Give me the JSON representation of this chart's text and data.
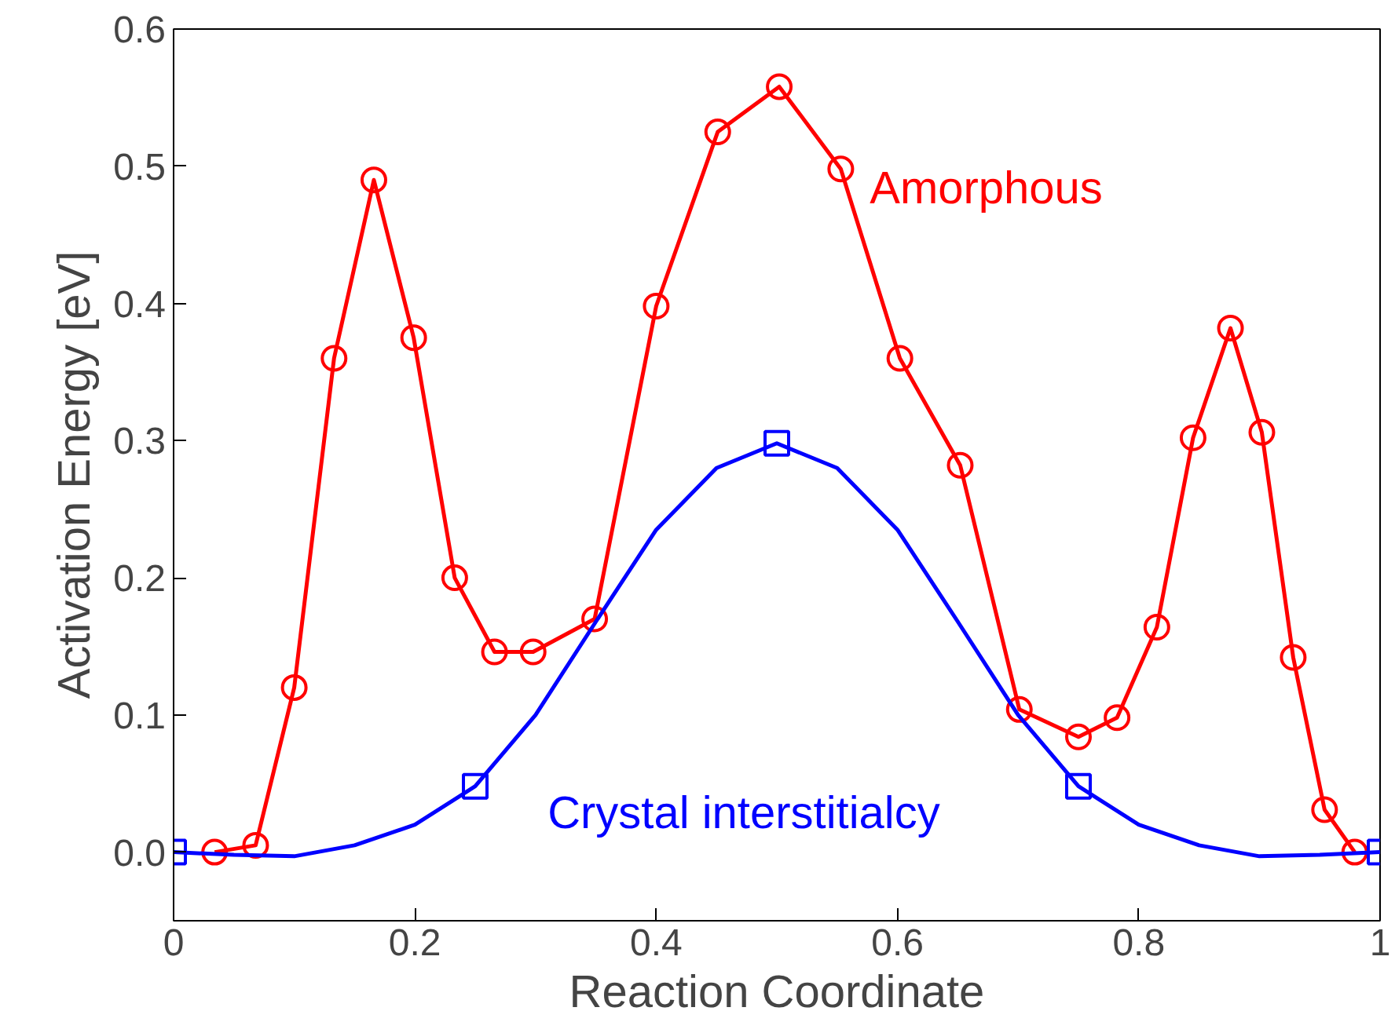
{
  "chart_data": {
    "type": "line",
    "xlabel": "Reaction Coordinate",
    "ylabel": "Activation Energy [eV]",
    "xlim": [
      0,
      1
    ],
    "ylim": [
      -0.05,
      0.6
    ],
    "xticks": [
      0,
      0.2,
      0.4,
      0.6,
      0.8,
      1
    ],
    "yticks": [
      {
        "value": 0,
        "label": "0.0"
      },
      0.1,
      0.2,
      0.3,
      0.4,
      0.5,
      0.6
    ],
    "grid": false,
    "line_style": "solid",
    "series": [
      {
        "name": "Amorphous",
        "color": "#ff0000",
        "marker": "circle",
        "x": [
          0.034,
          0.068,
          0.1,
          0.133,
          0.166,
          0.199,
          0.233,
          0.266,
          0.298,
          0.349,
          0.4,
          0.451,
          0.502,
          0.553,
          0.602,
          0.652,
          0.701,
          0.75,
          0.782,
          0.815,
          0.845,
          0.876,
          0.902,
          0.928,
          0.954,
          0.979
        ],
        "values": [
          0,
          0.005,
          0.12,
          0.36,
          0.49,
          0.375,
          0.2,
          0.146,
          0.146,
          0.17,
          0.398,
          0.525,
          0.558,
          0.498,
          0.36,
          0.282,
          0.104,
          0.084,
          0.098,
          0.164,
          0.302,
          0.382,
          0.306,
          0.142,
          0.031,
          0
        ]
      },
      {
        "color": "#0000ff",
        "marker": "none",
        "x": [
          0,
          0.05,
          0.1,
          0.15,
          0.2,
          0.25,
          0.3,
          0.35,
          0.4,
          0.45,
          0.5,
          0.55,
          0.6,
          0.65,
          0.7,
          0.75,
          0.8,
          0.85,
          0.9,
          0.95,
          1
        ],
        "values": [
          0,
          -0.002,
          -0.003,
          0.005,
          0.02,
          0.048,
          0.1,
          0.168,
          0.235,
          0.28,
          0.298,
          0.28,
          0.235,
          0.168,
          0.1,
          0.048,
          0.02,
          0.005,
          -0.003,
          -0.002,
          0
        ]
      },
      {
        "name": "Crystal interstitialcy",
        "type": "scatter",
        "color": "#0000ff",
        "marker": "square",
        "x": [
          0,
          0.25,
          0.5,
          0.75,
          1
        ],
        "values": [
          0,
          0.048,
          0.298,
          0.048,
          0
        ]
      }
    ]
  }
}
